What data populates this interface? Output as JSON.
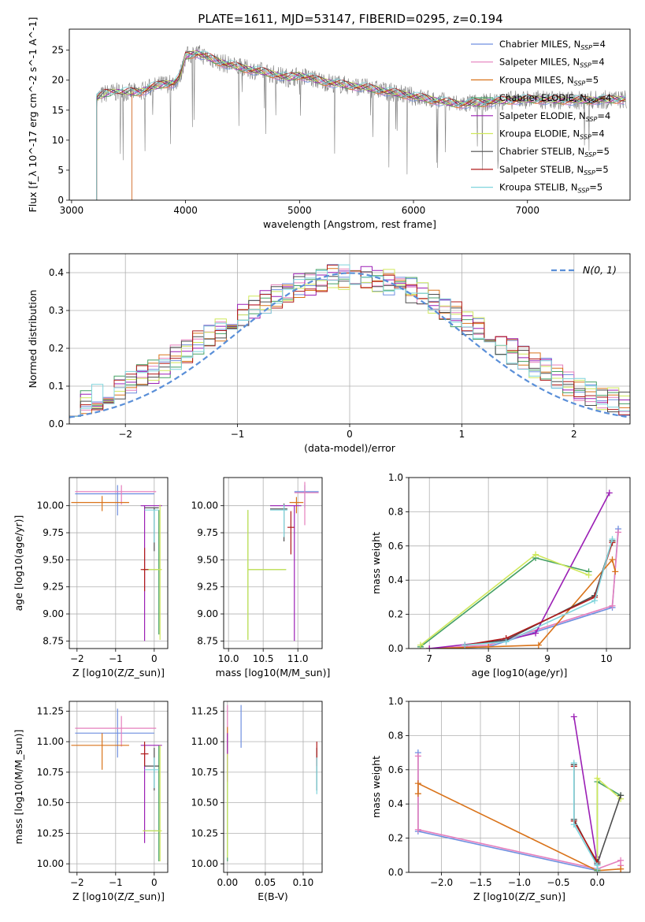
{
  "figure": {
    "title": "PLATE=1611, MJD=53147, FIBERID=0295, z=0.194"
  },
  "colors": {
    "Chabrier MILES": "#6f8fe0",
    "Salpeter MILES": "#e57fbd",
    "Kroupa MILES": "#d9731a",
    "Chabrier ELODIE": "#44a064",
    "Salpeter ELODIE": "#9b1fb5",
    "Kroupa ELODIE": "#cfe85b",
    "Chabrier STELIB": "#4d4d4d",
    "Salpeter STELIB": "#b01a1a",
    "Kroupa STELIB": "#7fd4dc",
    "spectrum": "#808080",
    "gaussian": "#5a8fd8",
    "grid": "#b0b0b0"
  },
  "legend_spectrum": [
    "Chabrier MILES, N_SSP=4",
    "Salpeter MILES, N_SSP=4",
    "Kroupa MILES, N_SSP=5",
    "Chabrier ELODIE, N_SSP=4",
    "Salpeter ELODIE, N_SSP=4",
    "Kroupa ELODIE, N_SSP=4",
    "Chabrier STELIB, N_SSP=5",
    "Salpeter STELIB, N_SSP=5",
    "Kroupa STELIB, N_SSP=5"
  ],
  "legend_normal": "N(0, 1)",
  "chart_data": [
    {
      "id": "spectrum",
      "type": "line",
      "xlabel": "wavelength [Angstrom, rest frame]",
      "ylabel": "Flux [f_λ 10^-17 erg cm^-2 s^-1 A^-1]",
      "xlim": [
        2980,
        7900
      ],
      "ylim": [
        0,
        28.5
      ],
      "xticks": [
        3000,
        4000,
        5000,
        6000,
        7000
      ],
      "yticks": [
        0,
        5,
        10,
        15,
        20,
        25
      ],
      "grid": false,
      "legend_position": "top-right",
      "continuum": {
        "x": [
          3220,
          3300,
          3400,
          3500,
          3600,
          3700,
          3800,
          3900,
          3950,
          4000,
          4100,
          4200,
          4300,
          4400,
          4500,
          4700,
          4900,
          5000,
          5200,
          5400,
          5600,
          5800,
          6000,
          6200,
          6400,
          6600,
          6800,
          7000,
          7200,
          7400,
          7600,
          7870
        ],
        "y": [
          17.0,
          17.8,
          18.0,
          18.0,
          18.0,
          18.8,
          19.3,
          19.5,
          20.5,
          24.0,
          24.5,
          23.8,
          23.0,
          22.5,
          22.0,
          21.3,
          20.4,
          20.8,
          19.8,
          19.2,
          18.7,
          18.0,
          17.3,
          16.6,
          16.0,
          16.2,
          16.6,
          16.8,
          16.7,
          16.6,
          16.7,
          16.8
        ]
      },
      "series_note": "model fits per library/IMF; observed spectrum in grey"
    },
    {
      "id": "residuals",
      "type": "histogram",
      "xlabel": "(data-model)/error",
      "ylabel": "Normed distribution",
      "xlim": [
        -2.5,
        2.5
      ],
      "ylim": [
        0,
        0.45
      ],
      "xticks": [
        -2,
        -1,
        0,
        1,
        2
      ],
      "yticks": [
        0.0,
        0.1,
        0.2,
        0.3,
        0.4
      ],
      "grid": true,
      "bin_width": 0.1,
      "reference": "N(0,1) gaussian, dashed"
    },
    {
      "id": "age-vs-Z",
      "type": "errorbar",
      "xlabel": "Z [log10(Z/Z_sun)]",
      "ylabel": "age [log10(age/yr)]",
      "xlim": [
        -2.2,
        0.35
      ],
      "ylim": [
        8.68,
        10.26
      ],
      "xticks": [
        -2,
        -1,
        0
      ],
      "yticks": [
        8.75,
        9.0,
        9.25,
        9.5,
        9.75,
        10.0
      ],
      "grid": true,
      "points": [
        {
          "model": "Chabrier MILES",
          "x": -0.95,
          "xerr": [
            1.1,
            0.95
          ],
          "y": 10.11,
          "yerr": [
            0.2,
            0.08
          ]
        },
        {
          "model": "Salpeter MILES",
          "x": -0.85,
          "xerr": [
            1.2,
            0.9
          ],
          "y": 10.13,
          "yerr": [
            0.12,
            0.06
          ]
        },
        {
          "model": "Kroupa MILES",
          "x": -1.35,
          "xerr": [
            0.8,
            0.7
          ],
          "y": 10.03,
          "yerr": [
            0.08,
            0.06
          ]
        },
        {
          "model": "Chabrier ELODIE",
          "x": 0.12,
          "xerr": [
            0.4,
            0.05
          ],
          "y": 9.41,
          "yerr": [
            0.6,
            0.55
          ]
        },
        {
          "model": "Salpeter ELODIE",
          "x": -0.25,
          "xerr": [
            0.1,
            0.45
          ],
          "y": 10.0,
          "yerr": [
            1.25,
            0.0
          ]
        },
        {
          "model": "Kroupa ELODIE",
          "x": 0.15,
          "xerr": [
            0.45,
            0.05
          ],
          "y": 9.41,
          "yerr": [
            0.65,
            0.6
          ]
        },
        {
          "model": "Chabrier STELIB",
          "x": 0.0,
          "xerr": [
            0.25,
            0.12
          ],
          "y": 9.98,
          "yerr": [
            0.4,
            0.0
          ]
        },
        {
          "model": "Salpeter STELIB",
          "x": -0.25,
          "xerr": [
            0.1,
            0.1
          ],
          "y": 9.41,
          "yerr": [
            0.2,
            0.2
          ]
        },
        {
          "model": "Kroupa STELIB",
          "x": 0.0,
          "xerr": [
            0.25,
            0.12
          ],
          "y": 9.96,
          "yerr": [
            0.3,
            0.0
          ]
        }
      ]
    },
    {
      "id": "age-vs-mass",
      "type": "errorbar",
      "xlabel": "mass [log10(M/M_sun)]",
      "ylabel": "",
      "xlim": [
        9.93,
        11.35
      ],
      "ylim": [
        8.68,
        10.26
      ],
      "xticks": [
        10.0,
        10.5,
        11.0
      ],
      "yticks": [
        8.75,
        9.0,
        9.25,
        9.5,
        9.75,
        10.0
      ],
      "grid": true,
      "points": [
        {
          "model": "Chabrier MILES",
          "x": 11.1,
          "xerr": [
            0.15,
            0.2
          ],
          "y": 10.13,
          "yerr": [
            0.15,
            0.06
          ]
        },
        {
          "model": "Salpeter MILES",
          "x": 11.1,
          "xerr": [
            0.15,
            0.2
          ],
          "y": 10.12,
          "yerr": [
            0.3,
            0.1
          ]
        },
        {
          "model": "Kroupa MILES",
          "x": 10.98,
          "xerr": [
            0.1,
            0.1
          ],
          "y": 10.03,
          "yerr": [
            0.1,
            0.05
          ]
        },
        {
          "model": "Chabrier ELODIE",
          "x": 10.28,
          "xerr": [
            0.0,
            0.55
          ],
          "y": 9.41,
          "yerr": [
            0.65,
            0.55
          ]
        },
        {
          "model": "Salpeter ELODIE",
          "x": 10.95,
          "xerr": [
            0.35,
            0.1
          ],
          "y": 10.0,
          "yerr": [
            1.25,
            0.0
          ]
        },
        {
          "model": "Kroupa ELODIE",
          "x": 10.28,
          "xerr": [
            0.0,
            0.55
          ],
          "y": 9.41,
          "yerr": [
            0.65,
            0.55
          ]
        },
        {
          "model": "Chabrier STELIB",
          "x": 10.8,
          "xerr": [
            0.2,
            0.05
          ],
          "y": 9.97,
          "yerr": [
            0.3,
            0.05
          ]
        },
        {
          "model": "Salpeter STELIB",
          "x": 10.9,
          "xerr": [
            0.05,
            0.05
          ],
          "y": 9.8,
          "yerr": [
            0.25,
            0.15
          ]
        },
        {
          "model": "Kroupa STELIB",
          "x": 10.8,
          "xerr": [
            0.2,
            0.05
          ],
          "y": 9.96,
          "yerr": [
            0.25,
            0.05
          ]
        }
      ]
    },
    {
      "id": "weight-vs-age",
      "type": "line",
      "xlabel": "age [log10(age/yr)]",
      "ylabel": "mass weight",
      "xlim": [
        6.65,
        10.4
      ],
      "ylim": [
        0,
        1.0
      ],
      "xticks": [
        7,
        8,
        9,
        10
      ],
      "yticks": [
        0.0,
        0.2,
        0.4,
        0.6,
        0.8,
        1.0
      ],
      "grid": true,
      "series": [
        {
          "name": "Chabrier MILES",
          "x": [
            7.0,
            8.0,
            10.1,
            10.2
          ],
          "y": [
            0.0,
            0.01,
            0.24,
            0.7
          ]
        },
        {
          "name": "Salpeter MILES",
          "x": [
            7.0,
            8.0,
            10.1,
            10.2
          ],
          "y": [
            0.0,
            0.02,
            0.25,
            0.68
          ]
        },
        {
          "name": "Kroupa MILES",
          "x": [
            7.0,
            8.0,
            8.85,
            10.1,
            10.15
          ],
          "y": [
            0.0,
            0.01,
            0.02,
            0.52,
            0.45
          ]
        },
        {
          "name": "Chabrier ELODIE",
          "x": [
            6.85,
            8.8,
            9.7
          ],
          "y": [
            0.01,
            0.53,
            0.45
          ]
        },
        {
          "name": "Salpeter ELODIE",
          "x": [
            7.0,
            8.3,
            8.8,
            10.05
          ],
          "y": [
            0.0,
            0.05,
            0.09,
            0.91
          ]
        },
        {
          "name": "Kroupa ELODIE",
          "x": [
            6.85,
            8.8,
            9.7
          ],
          "y": [
            0.02,
            0.55,
            0.43
          ]
        },
        {
          "name": "Chabrier STELIB",
          "x": [
            7.6,
            8.3,
            9.8,
            10.1
          ],
          "y": [
            0.02,
            0.05,
            0.31,
            0.63
          ]
        },
        {
          "name": "Salpeter STELIB",
          "x": [
            7.6,
            8.3,
            9.8,
            10.1
          ],
          "y": [
            0.02,
            0.06,
            0.3,
            0.62
          ]
        },
        {
          "name": "Kroupa STELIB",
          "x": [
            7.6,
            8.3,
            9.8,
            10.1
          ],
          "y": [
            0.02,
            0.04,
            0.28,
            0.64
          ]
        }
      ]
    },
    {
      "id": "mass-vs-Z",
      "type": "errorbar",
      "xlabel": "Z [log10(Z/Z_sun)]",
      "ylabel": "mass [log10(M/M_sun)]",
      "xlim": [
        -2.2,
        0.35
      ],
      "ylim": [
        9.93,
        11.33
      ],
      "xticks": [
        -2,
        -1,
        0
      ],
      "yticks": [
        10.0,
        10.25,
        10.5,
        10.75,
        11.0,
        11.25
      ],
      "grid": true,
      "points": [
        {
          "model": "Chabrier MILES",
          "x": -0.95,
          "xerr": [
            1.1,
            0.95
          ],
          "y": 11.07,
          "yerr": [
            0.2,
            0.2
          ]
        },
        {
          "model": "Salpeter MILES",
          "x": -0.85,
          "xerr": [
            1.2,
            0.9
          ],
          "y": 11.11,
          "yerr": [
            0.15,
            0.1
          ]
        },
        {
          "model": "Kroupa MILES",
          "x": -1.35,
          "xerr": [
            0.8,
            0.7
          ],
          "y": 10.97,
          "yerr": [
            0.2,
            0.1
          ]
        },
        {
          "model": "Chabrier ELODIE",
          "x": 0.12,
          "xerr": [
            0.4,
            0.05
          ],
          "y": 10.27,
          "yerr": [
            0.25,
            0.7
          ]
        },
        {
          "model": "Salpeter ELODIE",
          "x": -0.25,
          "xerr": [
            0.1,
            0.45
          ],
          "y": 10.97,
          "yerr": [
            0.8,
            0.0
          ]
        },
        {
          "model": "Kroupa ELODIE",
          "x": 0.15,
          "xerr": [
            0.45,
            0.05
          ],
          "y": 10.27,
          "yerr": [
            0.25,
            0.7
          ]
        },
        {
          "model": "Chabrier STELIB",
          "x": 0.0,
          "xerr": [
            0.25,
            0.12
          ],
          "y": 10.8,
          "yerr": [
            0.2,
            0.15
          ]
        },
        {
          "model": "Salpeter STELIB",
          "x": -0.25,
          "xerr": [
            0.1,
            0.1
          ],
          "y": 10.9,
          "yerr": [
            0.1,
            0.1
          ]
        },
        {
          "model": "Kroupa STELIB",
          "x": 0.0,
          "xerr": [
            0.25,
            0.12
          ],
          "y": 10.77,
          "yerr": [
            0.15,
            0.1
          ]
        }
      ]
    },
    {
      "id": "mass-vs-ebv",
      "type": "errorbar",
      "xlabel": "E(B-V)",
      "ylabel": "",
      "xlim": [
        -0.005,
        0.125
      ],
      "ylim": [
        9.93,
        11.33
      ],
      "xticks": [
        0.0,
        0.05,
        0.1
      ],
      "yticks": [
        10.0,
        10.25,
        10.5,
        10.75,
        11.0,
        11.25
      ],
      "grid": true,
      "points": [
        {
          "model": "Chabrier MILES",
          "x": 0.018,
          "xerr": [
            0,
            0
          ],
          "y": 11.1,
          "yerr": [
            0.15,
            0.2
          ]
        },
        {
          "model": "Salpeter MILES",
          "x": 0.0,
          "xerr": [
            0,
            0
          ],
          "y": 11.15,
          "yerr": [
            0.2,
            0.15
          ]
        },
        {
          "model": "Kroupa MILES",
          "x": 0.0,
          "xerr": [
            0,
            0
          ],
          "y": 10.97,
          "yerr": [
            0.1,
            0.15
          ]
        },
        {
          "model": "Chabrier ELODIE",
          "x": 0.0,
          "xerr": [
            0,
            0
          ],
          "y": 10.27,
          "yerr": [
            0.25,
            0.6
          ]
        },
        {
          "model": "Salpeter ELODIE",
          "x": 0.0,
          "xerr": [
            0,
            0
          ],
          "y": 10.97,
          "yerr": [
            0.3,
            0.1
          ]
        },
        {
          "model": "Kroupa ELODIE",
          "x": 0.0,
          "xerr": [
            0,
            0
          ],
          "y": 10.5,
          "yerr": [
            0.45,
            0.4
          ]
        },
        {
          "model": "Chabrier STELIB",
          "x": 0.118,
          "xerr": [
            0,
            0
          ],
          "y": 10.8,
          "yerr": [
            0.2,
            0.15
          ]
        },
        {
          "model": "Salpeter STELIB",
          "x": 0.118,
          "xerr": [
            0,
            0
          ],
          "y": 10.9,
          "yerr": [
            0.1,
            0.1
          ]
        },
        {
          "model": "Kroupa STELIB",
          "x": 0.118,
          "xerr": [
            0,
            0
          ],
          "y": 10.77,
          "yerr": [
            0.2,
            0.1
          ]
        }
      ]
    },
    {
      "id": "weight-vs-Z",
      "type": "line",
      "xlabel": "Z [log10(Z/Z_sun)]",
      "ylabel": "mass weight",
      "xlim": [
        -2.42,
        0.42
      ],
      "ylim": [
        0,
        1.0
      ],
      "xticks": [
        -2.0,
        -1.5,
        -1.0,
        -0.5,
        0.0
      ],
      "yticks": [
        0.0,
        0.2,
        0.4,
        0.6,
        0.8,
        1.0
      ],
      "grid": true,
      "series": [
        {
          "name": "Chabrier MILES",
          "x": [
            -2.3,
            -2.3,
            0.0,
            0.0
          ],
          "y": [
            0.7,
            0.24,
            0.01,
            0.05
          ]
        },
        {
          "name": "Salpeter MILES",
          "x": [
            -2.3,
            -2.3,
            0.0,
            0.3,
            0.3
          ],
          "y": [
            0.68,
            0.25,
            0.02,
            0.07,
            0.04
          ]
        },
        {
          "name": "Kroupa MILES",
          "x": [
            -2.3,
            -2.3,
            0.0,
            0.3,
            0.3
          ],
          "y": [
            0.46,
            0.52,
            0.01,
            0.02,
            0.02
          ]
        },
        {
          "name": "Chabrier ELODIE",
          "x": [
            0.0,
            0.0,
            0.3
          ],
          "y": [
            0.01,
            0.53,
            0.45
          ]
        },
        {
          "name": "Salpeter ELODIE",
          "x": [
            -0.3,
            0.0,
            0.0
          ],
          "y": [
            0.91,
            0.05,
            0.09
          ]
        },
        {
          "name": "Kroupa ELODIE",
          "x": [
            0.0,
            0.0,
            0.3
          ],
          "y": [
            0.02,
            0.55,
            0.43
          ]
        },
        {
          "name": "Chabrier STELIB",
          "x": [
            -0.3,
            -0.3,
            0.0,
            0.3
          ],
          "y": [
            0.63,
            0.31,
            0.05,
            0.45
          ]
        },
        {
          "name": "Salpeter STELIB",
          "x": [
            -0.3,
            -0.3,
            0.0,
            0.0
          ],
          "y": [
            0.62,
            0.3,
            0.06,
            0.02
          ]
        },
        {
          "name": "Kroupa STELIB",
          "x": [
            -0.3,
            -0.3,
            0.0,
            0.0
          ],
          "y": [
            0.64,
            0.28,
            0.04,
            0.02
          ]
        }
      ]
    }
  ]
}
